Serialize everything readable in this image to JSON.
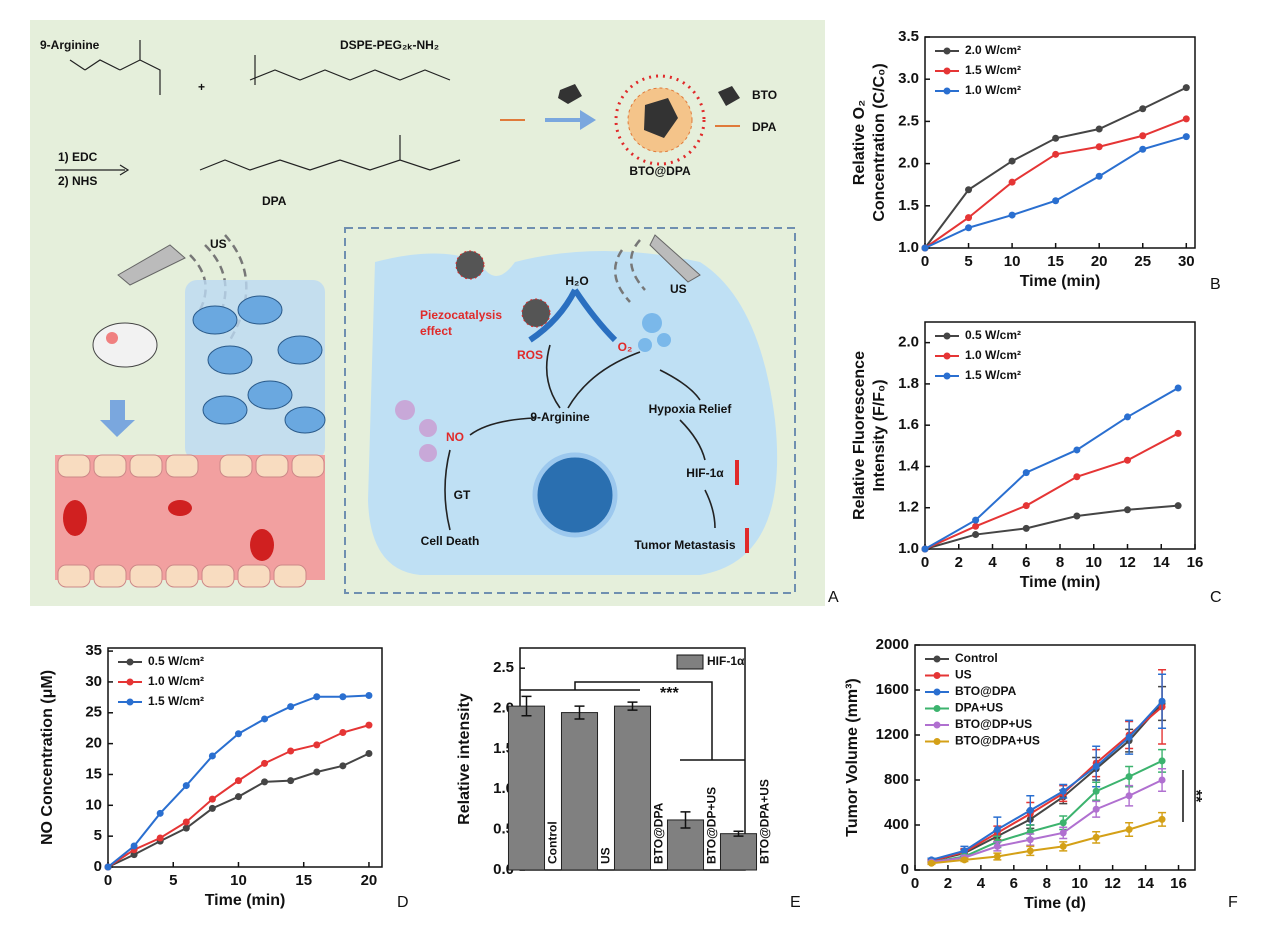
{
  "schematic": {
    "reactant1": "9-Arginine",
    "reactant2": "DSPE-PEG₂ₖ-NH₂",
    "plus": "+",
    "reagent1": "1) EDC",
    "reagent2": "2) NHS",
    "product": "DPA",
    "nanoparticle": "BTO@DPA",
    "legend_bto": "BTO",
    "legend_dpa": "DPA",
    "us_left": "US",
    "us_right": "US",
    "water": "H₂O",
    "piezo": [
      "Piezocatalysis",
      "effect"
    ],
    "ros": "ROS",
    "o2": "O₂",
    "arginine": "9-Arginine",
    "no": "NO",
    "hypoxia": "Hypoxia Relief",
    "hif": "HIF-1α",
    "gt": "GT",
    "cell_death": "Cell Death",
    "metastasis": "Tumor Metastasis",
    "panel_label": "A"
  },
  "chart_data": [
    {
      "type": "line",
      "panel_label": "B",
      "xlabel": "Time (min)",
      "ylabel": [
        "Relative O₂",
        "Concentration (C/C₀)"
      ],
      "x": [
        0,
        5,
        10,
        15,
        20,
        25,
        30
      ],
      "xlim": [
        0,
        31
      ],
      "xticks": [
        0,
        5,
        10,
        15,
        20,
        25,
        30
      ],
      "ylim": [
        1.0,
        3.5
      ],
      "yticks": [
        {
          "value": 1,
          "label": "1.0"
        },
        1.5,
        {
          "value": 2,
          "label": "2.0"
        },
        2.5,
        {
          "value": 3,
          "label": "3.0"
        },
        3.5
      ],
      "legend": "upper left",
      "series": [
        {
          "name": "2.0 W/cm²",
          "color": "#454545",
          "values": [
            1.0,
            1.69,
            2.03,
            2.3,
            2.41,
            2.65,
            2.9
          ]
        },
        {
          "name": "1.5 W/cm²",
          "color": "#e53535",
          "values": [
            1.0,
            1.36,
            1.78,
            2.11,
            2.2,
            2.33,
            2.53
          ]
        },
        {
          "name": "1.0 W/cm²",
          "color": "#2a6fd0",
          "values": [
            1.0,
            1.24,
            1.39,
            1.56,
            1.85,
            2.17,
            2.32
          ]
        }
      ]
    },
    {
      "type": "line",
      "panel_label": "C",
      "xlabel": "Time (min)",
      "ylabel": [
        "Relative Fluorescence",
        "Intensity (F/F₀)"
      ],
      "x": [
        0,
        3,
        6,
        9,
        12,
        15
      ],
      "xlim": [
        0,
        16
      ],
      "xticks": [
        0,
        2,
        4,
        6,
        8,
        10,
        12,
        14,
        16
      ],
      "ylim": [
        1.0,
        2.1
      ],
      "yticks": [
        {
          "value": 1,
          "label": "1.0"
        },
        1.2,
        1.4,
        1.6,
        1.8,
        {
          "value": 2,
          "label": "2.0"
        }
      ],
      "legend": "upper left",
      "series": [
        {
          "name": "0.5 W/cm²",
          "color": "#454545",
          "values": [
            1.0,
            1.07,
            1.1,
            1.16,
            1.19,
            1.21
          ]
        },
        {
          "name": "1.0 W/cm²",
          "color": "#e53535",
          "values": [
            1.0,
            1.11,
            1.21,
            1.35,
            1.43,
            1.56
          ]
        },
        {
          "name": "1.5 W/cm²",
          "color": "#2a6fd0",
          "values": [
            1.0,
            1.14,
            1.37,
            1.48,
            1.64,
            1.78
          ]
        }
      ]
    },
    {
      "type": "line",
      "panel_label": "D",
      "xlabel": "Time (min)",
      "ylabel": [
        "NO Concentration (μM)"
      ],
      "x": [
        0,
        2,
        4,
        6,
        8,
        10,
        12,
        14,
        16,
        18,
        20
      ],
      "xlim": [
        0,
        21
      ],
      "xticks": [
        0,
        5,
        10,
        15,
        20
      ],
      "ylim": [
        0,
        35.5
      ],
      "yticks": [
        0,
        5,
        10,
        15,
        20,
        25,
        30,
        35
      ],
      "legend": "upper left",
      "series": [
        {
          "name": "0.5 W/cm²",
          "color": "#454545",
          "values": [
            0,
            2,
            4.2,
            6.3,
            9.5,
            11.4,
            13.8,
            14,
            15.4,
            16.4,
            18.4
          ]
        },
        {
          "name": "1.0 W/cm²",
          "color": "#e53535",
          "values": [
            0,
            2.8,
            4.7,
            7.3,
            11,
            14,
            16.8,
            18.8,
            19.8,
            21.8,
            23
          ]
        },
        {
          "name": "1.5 W/cm²",
          "color": "#2a6fd0",
          "values": [
            0,
            3.4,
            8.7,
            13.2,
            18,
            21.6,
            24,
            26,
            27.6,
            27.6,
            27.8
          ]
        }
      ]
    },
    {
      "type": "bar",
      "panel_label": "E",
      "ylabel": [
        "Relative intensity"
      ],
      "categories": [
        "Control",
        "US",
        "BTO@DPA",
        "BTO@DP+US",
        "BTO@DPA+US"
      ],
      "series": [
        {
          "name": "HIF-1α",
          "color": "#808080",
          "values": [
            2.03,
            1.95,
            2.03,
            0.62,
            0.45
          ],
          "errors": [
            0.12,
            0.08,
            0.05,
            0.1,
            0.03
          ]
        }
      ],
      "ylim": [
        0,
        2.75
      ],
      "yticks": [
        {
          "value": 0,
          "label": "0.0"
        },
        0.5,
        {
          "value": 1,
          "label": "1.0"
        },
        1.5,
        {
          "value": 2,
          "label": "2.0"
        },
        2.5
      ],
      "legend": "upper right",
      "annotation": "***"
    },
    {
      "type": "line",
      "panel_label": "F",
      "xlabel": "Time (d)",
      "ylabel": [
        "Tumor Volume (mm³)"
      ],
      "x": [
        1,
        3,
        5,
        7,
        9,
        11,
        13,
        15
      ],
      "xlim": [
        0,
        17
      ],
      "xticks": [
        0,
        2,
        4,
        6,
        8,
        10,
        12,
        14,
        16
      ],
      "ylim": [
        0,
        2000
      ],
      "yticks": [
        0,
        400,
        800,
        1200,
        1600,
        2000
      ],
      "legend": "upper left",
      "annotation": "**",
      "series": [
        {
          "name": "Control",
          "color": "#454545",
          "values": [
            80,
            150,
            300,
            450,
            650,
            900,
            1150,
            1480
          ],
          "errors": [
            10,
            30,
            50,
            80,
            60,
            100,
            100,
            150
          ]
        },
        {
          "name": "US",
          "color": "#e53535",
          "values": [
            80,
            160,
            330,
            500,
            680,
            950,
            1200,
            1450
          ],
          "errors": [
            10,
            30,
            60,
            100,
            70,
            120,
            120,
            330
          ]
        },
        {
          "name": "BTO@DPA",
          "color": "#2a6fd0",
          "values": [
            90,
            170,
            360,
            530,
            700,
            920,
            1180,
            1500
          ],
          "errors": [
            15,
            40,
            110,
            130,
            60,
            180,
            150,
            240
          ]
        },
        {
          "name": "DPA+US",
          "color": "#3cb36e",
          "values": [
            70,
            120,
            250,
            340,
            420,
            700,
            830,
            970
          ],
          "errors": [
            10,
            20,
            50,
            60,
            60,
            80,
            90,
            100
          ]
        },
        {
          "name": "BTO@DP+US",
          "color": "#b070d0",
          "values": [
            70,
            110,
            210,
            270,
            330,
            540,
            660,
            800
          ],
          "errors": [
            10,
            20,
            40,
            50,
            50,
            70,
            90,
            100
          ]
        },
        {
          "name": "BTO@DPA+US",
          "color": "#d4a017",
          "values": [
            60,
            90,
            120,
            170,
            210,
            290,
            360,
            450
          ],
          "errors": [
            10,
            15,
            30,
            40,
            40,
            50,
            60,
            60
          ]
        }
      ]
    }
  ]
}
